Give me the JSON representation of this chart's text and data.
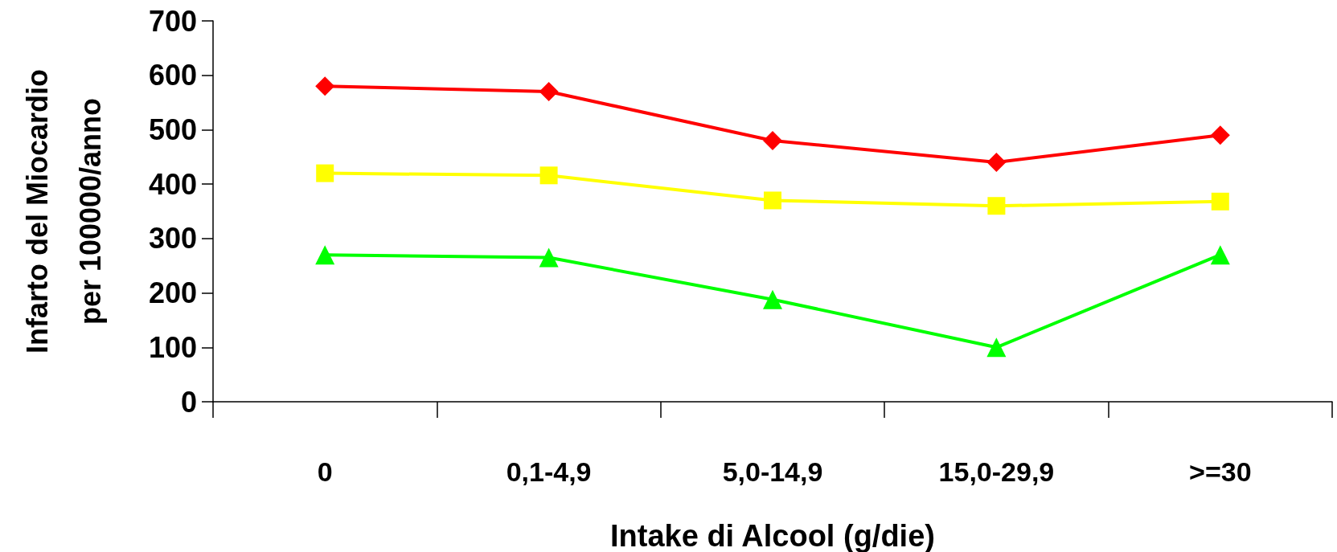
{
  "chart_data": {
    "type": "line",
    "xlabel": "Intake di Alcool (g/die)",
    "ylabel": "Infarto del Miocardio\nper 100000/anno",
    "categories": [
      "0",
      "0,1-4,9",
      "5,0-14,9",
      "15,0-29,9",
      ">=30"
    ],
    "series": [
      {
        "color": "#ff0000",
        "marker": "diamond",
        "values": [
          580,
          570,
          480,
          440,
          490
        ]
      },
      {
        "color": "#ffff00",
        "marker": "square",
        "values": [
          420,
          416,
          370,
          360,
          368
        ]
      },
      {
        "color": "#00ff00",
        "marker": "triangle",
        "values": [
          270,
          265,
          188,
          100,
          270
        ]
      }
    ],
    "ylim": [
      0,
      700
    ],
    "yticks": [
      0,
      100,
      200,
      300,
      400,
      500,
      600,
      700
    ],
    "line_style": "solid"
  }
}
